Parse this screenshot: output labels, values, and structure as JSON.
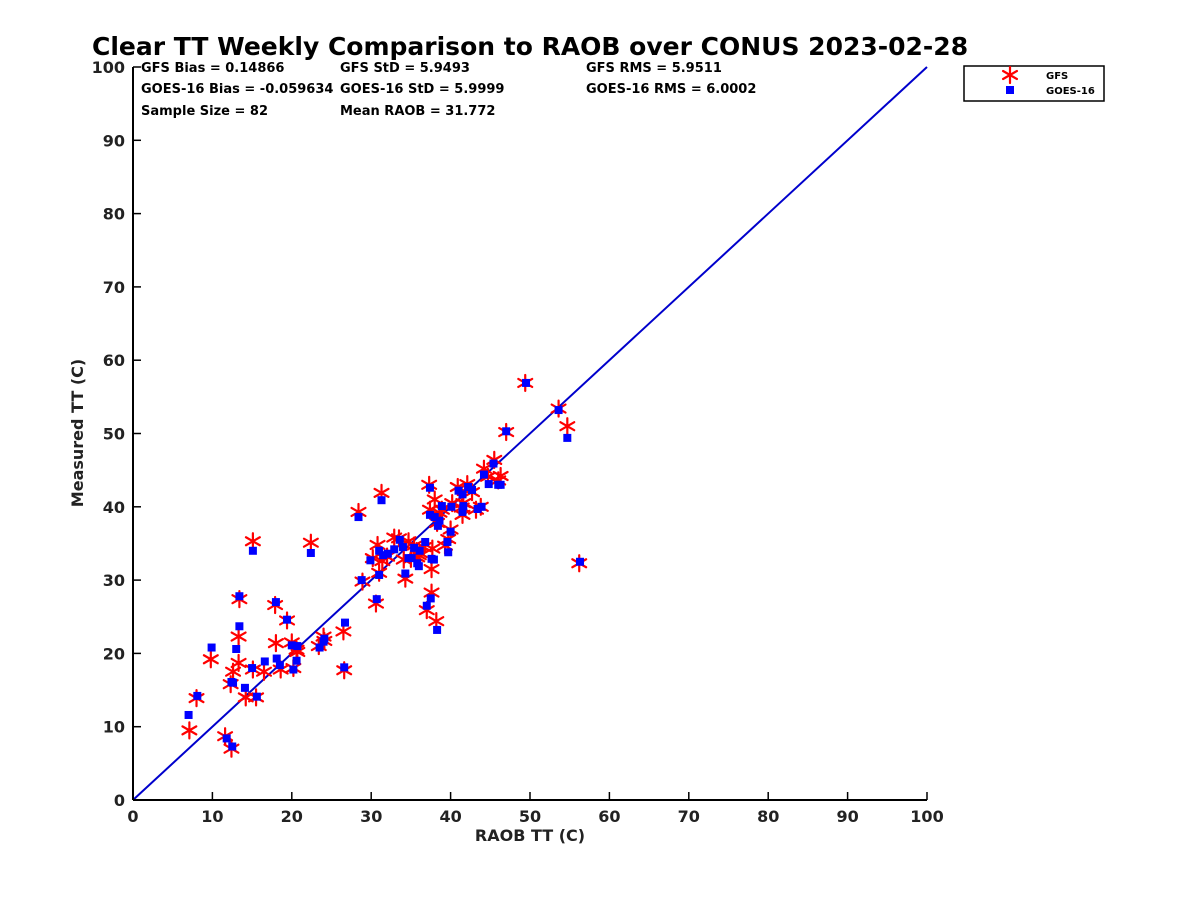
{
  "chart_data": {
    "type": "scatter",
    "title": "Clear TT Weekly Comparison to RAOB over CONUS 2023-02-28",
    "xlabel": "RAOB TT (C)",
    "ylabel": "Measured TT (C)",
    "xlim": [
      0,
      100
    ],
    "ylim": [
      0,
      100
    ],
    "xticks": [
      "0",
      "10",
      "20",
      "30",
      "40",
      "50",
      "60",
      "70",
      "80",
      "90",
      "100"
    ],
    "yticks": [
      "0",
      "10",
      "20",
      "30",
      "40",
      "50",
      "60",
      "70",
      "80",
      "90",
      "100"
    ],
    "reference_line": {
      "from": [
        0,
        0
      ],
      "to": [
        100,
        100
      ],
      "color": "#0000cc"
    },
    "stats": [
      "GFS Bias = 0.14866",
      "GFS StD = 5.9493",
      "GFS RMS = 5.9511",
      "GOES-16 Bias = -0.059634",
      "GOES-16 StD = 5.9999",
      "GOES-16 RMS = 6.0002",
      "Sample Size = 82",
      "Mean RAOB = 31.772"
    ],
    "legend_position": "top-right outside",
    "series": [
      {
        "name": "GFS",
        "marker": "asterisk",
        "color": "#ff0000",
        "x": [
          7.1,
          8.0,
          9.8,
          11.6,
          12.4,
          12.3,
          13.3,
          13.3,
          13.4,
          14.2,
          15.1,
          15.1,
          15.5,
          16.5,
          17.9,
          18.0,
          18.6,
          19.4,
          20.0,
          20.2,
          20.6,
          22.4,
          23.4,
          24.0,
          26.5,
          26.6,
          28.4,
          28.9,
          30.2,
          30.6,
          30.8,
          31.0,
          31.3,
          31.4,
          32.9,
          33.5,
          34.1,
          34.3,
          34.7,
          35.4,
          35.8,
          36.1,
          36.6,
          37.0,
          37.3,
          37.4,
          37.6,
          37.6,
          37.7,
          38.2,
          38.3,
          38.6,
          38.9,
          39.3,
          39.7,
          40.0,
          40.2,
          40.9,
          41.4,
          41.5,
          41.6,
          42.1,
          43.2,
          43.8,
          44.2,
          44.7,
          45.5,
          46.0,
          46.3,
          47.0,
          49.4,
          53.6,
          54.7,
          56.2,
          24.1,
          20.7,
          32.0,
          35.0,
          36.0,
          38.0,
          42.7,
          12.6
        ],
        "y": [
          9.5,
          13.9,
          19.2,
          8.7,
          7.0,
          15.8,
          18.7,
          22.3,
          27.4,
          14.0,
          35.3,
          17.8,
          14.0,
          17.5,
          26.6,
          21.4,
          17.8,
          24.5,
          21.5,
          18.0,
          20.5,
          35.1,
          21.0,
          22.3,
          23.0,
          17.7,
          39.3,
          29.8,
          33.0,
          26.8,
          34.8,
          31.0,
          41.9,
          32.6,
          35.8,
          35.7,
          32.8,
          30.2,
          35.3,
          34.7,
          33.1,
          33.7,
          34.5,
          25.9,
          43.0,
          39.6,
          31.5,
          28.3,
          34.3,
          24.4,
          37.8,
          39.2,
          39.6,
          34.7,
          35.6,
          36.9,
          40.5,
          42.7,
          39.9,
          38.9,
          40.5,
          43.1,
          39.6,
          40.0,
          45.2,
          44.1,
          46.4,
          43.6,
          44.2,
          50.2,
          56.9,
          53.4,
          51.0,
          32.3,
          21.7,
          20.2,
          33.2,
          32.9,
          33.4,
          41.0,
          42.0,
          17.5
        ]
      },
      {
        "name": "GOES-16",
        "marker": "square",
        "color": "#0000ff",
        "x": [
          7.0,
          8.1,
          9.9,
          11.8,
          12.5,
          12.4,
          13.0,
          13.4,
          13.4,
          14.1,
          15.1,
          15.0,
          15.6,
          16.6,
          18.0,
          18.1,
          18.5,
          19.4,
          20.0,
          20.2,
          20.6,
          22.4,
          23.5,
          24.0,
          26.7,
          26.6,
          28.4,
          28.8,
          29.9,
          30.7,
          31.0,
          31.0,
          31.3,
          31.5,
          32.9,
          33.6,
          34.0,
          34.3,
          34.7,
          35.4,
          35.8,
          36.0,
          36.8,
          37.0,
          37.4,
          37.4,
          37.6,
          37.5,
          37.9,
          38.3,
          38.4,
          38.6,
          38.9,
          39.6,
          39.7,
          40.0,
          40.1,
          41.0,
          41.5,
          41.5,
          41.6,
          42.2,
          43.4,
          43.9,
          44.2,
          44.8,
          45.4,
          46.0,
          46.3,
          47.0,
          49.5,
          53.6,
          54.7,
          56.3,
          24.1,
          20.7,
          32.1,
          35.1,
          36.1,
          38.0,
          42.7,
          12.6
        ],
        "y": [
          11.6,
          14.2,
          20.8,
          8.4,
          7.3,
          16.1,
          20.6,
          23.7,
          27.8,
          15.3,
          34.0,
          18.0,
          14.1,
          18.9,
          27.0,
          19.3,
          18.4,
          24.6,
          21.1,
          17.8,
          19.0,
          33.7,
          20.8,
          21.6,
          24.2,
          18.1,
          38.6,
          30.0,
          32.7,
          27.4,
          30.7,
          34.0,
          40.9,
          33.4,
          34.2,
          35.5,
          34.5,
          30.9,
          33.0,
          34.4,
          32.3,
          31.9,
          35.2,
          26.5,
          42.6,
          38.9,
          32.9,
          27.5,
          32.8,
          23.2,
          37.4,
          38.1,
          40.1,
          35.2,
          33.8,
          36.6,
          40.0,
          42.2,
          41.7,
          39.3,
          40.1,
          42.7,
          39.7,
          40.0,
          44.4,
          43.1,
          45.9,
          43.0,
          43.0,
          50.3,
          56.9,
          53.2,
          49.4,
          32.5,
          22.0,
          21.0,
          33.6,
          33.0,
          34.0,
          38.6,
          42.3,
          16.0
        ]
      }
    ]
  }
}
